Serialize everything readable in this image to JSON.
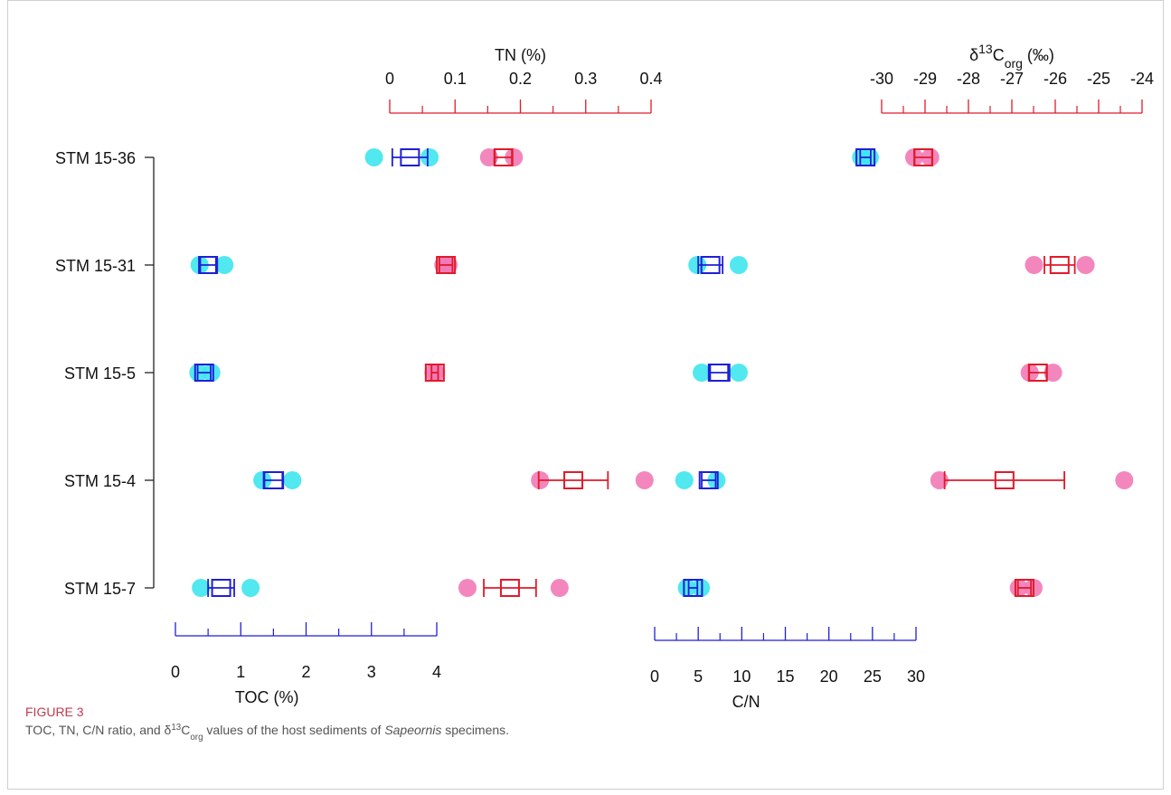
{
  "chart_data": {
    "type": "dot-range",
    "categories": [
      "STM 15-36",
      "STM 15-31",
      "STM 15-5",
      "STM 15-4",
      "STM 15-7"
    ],
    "series": [
      {
        "name_parts": [
          {
            "text": "TOC (%)"
          }
        ],
        "color": "#1f1fd6",
        "point_color": "#3ee6ee",
        "axis_side": "bottom",
        "xlim": [
          0,
          4
        ],
        "xticks": [
          0,
          1,
          2,
          3,
          4
        ],
        "minor_xticks": [
          0.5,
          1.5,
          2.5,
          3.5
        ],
        "points": [
          [
            3.04,
            3.89
          ],
          [
            0.37,
            0.75
          ],
          [
            0.35,
            0.55
          ],
          [
            1.33,
            1.79
          ],
          [
            0.39,
            1.15
          ]
        ],
        "means": [
          3.59,
          0.5,
          0.44,
          1.5,
          0.7
        ],
        "errors": [
          0.27,
          0.12,
          0.1,
          0.15,
          0.2
        ]
      },
      {
        "name_parts": [
          {
            "text": "TN (%)"
          }
        ],
        "color": "#e01a2a",
        "point_color": "#f27ab6",
        "axis_side": "top",
        "xlim": [
          0,
          0.4
        ],
        "xticks": [
          0,
          0.1,
          0.2,
          0.3,
          0.4
        ],
        "minor_xticks": [
          0.05,
          0.15,
          0.25,
          0.35
        ],
        "points": [
          [
            0.152,
            0.19
          ],
          [
            0.082,
            0.09
          ],
          [
            0.067,
            0.071
          ],
          [
            0.23,
            0.39
          ],
          [
            0.119,
            0.26
          ]
        ],
        "means": [
          0.174,
          0.086,
          0.069,
          0.281,
          0.184
        ],
        "errors": [
          0.013,
          0.01,
          0.005,
          0.053,
          0.04
        ]
      },
      {
        "name_parts": [
          {
            "text": "C/N"
          }
        ],
        "color": "#1f1fd6",
        "point_color": "#3ee6ee",
        "axis_side": "bottom",
        "xlim": [
          0,
          30
        ],
        "xticks": [
          0,
          5,
          10,
          15,
          20,
          25,
          30
        ],
        "minor_xticks": [
          2.5,
          7.5,
          12.5,
          17.5,
          22.5,
          27.5
        ],
        "points": [
          [
            23.7,
            24.7
          ],
          [
            4.9,
            9.65
          ],
          [
            5.4,
            9.65
          ],
          [
            3.4,
            7.1
          ],
          [
            3.7,
            5.3
          ]
        ],
        "means": [
          24.2,
          6.4,
          7.4,
          6.2,
          4.4
        ],
        "errors": [
          0.6,
          1.4,
          1.2,
          0.8,
          0.5
        ]
      },
      {
        "name_parts": [
          {
            "text": "δ"
          },
          {
            "text": "13",
            "style": "sup"
          },
          {
            "text": "C"
          },
          {
            "text": "org",
            "style": "sub"
          },
          {
            "text": " (‰)"
          }
        ],
        "color": "#e01a2a",
        "point_color": "#f27ab6",
        "axis_side": "top",
        "xlim": [
          -30,
          -24
        ],
        "xticks": [
          -30,
          -29,
          -28,
          -27,
          -26,
          -25,
          -24
        ],
        "minor_xticks": [
          -29.5,
          -28.5,
          -27.5,
          -26.5,
          -25.5,
          -24.5
        ],
        "points": [
          [
            -29.25,
            -28.88
          ],
          [
            -26.49,
            -25.3
          ],
          [
            -26.59,
            -26.05
          ],
          [
            -28.67,
            -24.41
          ],
          [
            -26.84,
            -26.5
          ]
        ],
        "means": [
          -29.04,
          -25.9,
          -26.4,
          -27.17,
          -26.71
        ],
        "errors": [
          0.2,
          0.35,
          0.2,
          1.38,
          0.15
        ]
      }
    ]
  },
  "figure_label": "FIGURE 3",
  "caption_parts": [
    {
      "text": "TOC, TN, C/N ratio, and δ"
    },
    {
      "text": "13",
      "style": "sup"
    },
    {
      "text": "C"
    },
    {
      "text": "org",
      "style": "sub"
    },
    {
      "text": " values of the host sediments of "
    },
    {
      "text": "Sapeornis",
      "style": "italic"
    },
    {
      "text": " specimens."
    }
  ]
}
